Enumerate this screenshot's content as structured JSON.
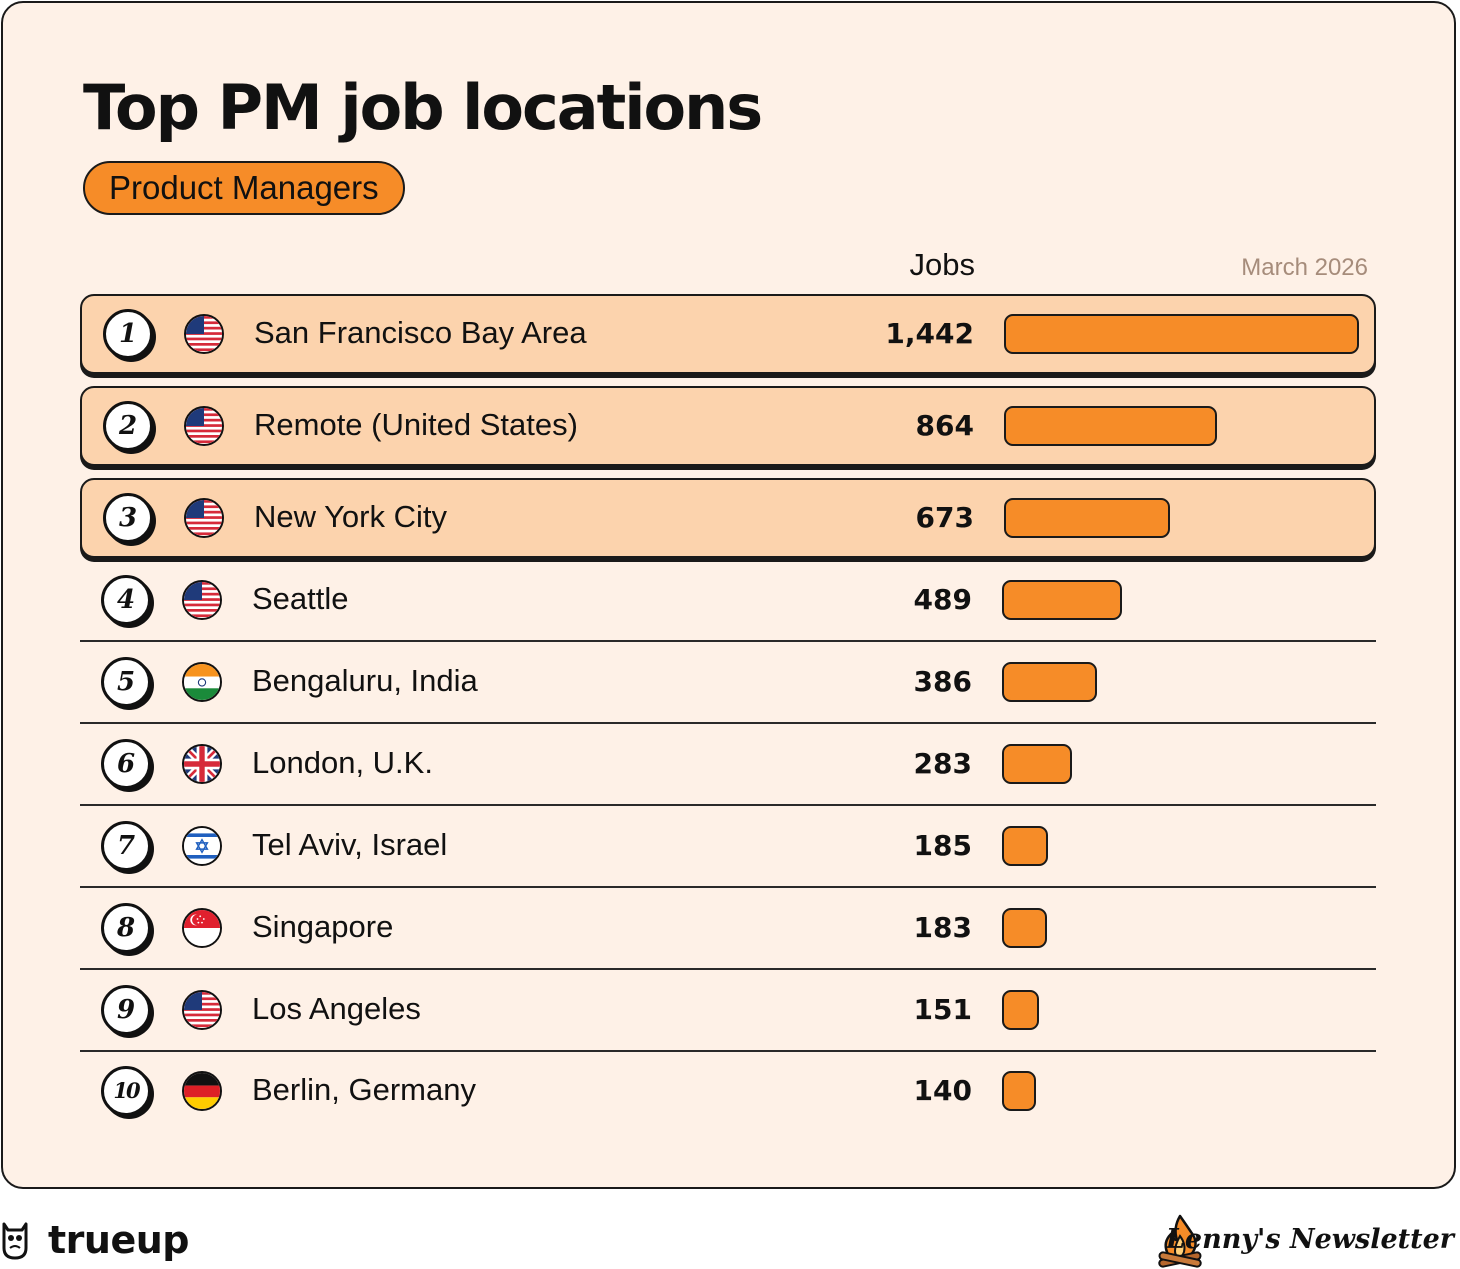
{
  "header": {
    "title": "Top PM job locations",
    "category_pill": "Product Managers",
    "jobs_column_label": "Jobs",
    "date_label": "March 2026"
  },
  "colors": {
    "accent": "#f68c28",
    "highlight_row": "#fcd3ad",
    "card_background": "#fef1e7",
    "muted_text": "#a68c7b"
  },
  "chart_data": {
    "type": "bar",
    "orientation": "horizontal",
    "title": "Top PM job locations",
    "subtitle": "Product Managers",
    "value_label": "Jobs",
    "date": "March 2026",
    "xlim": [
      0,
      1442
    ],
    "rows": [
      {
        "rank": "1",
        "location": "San Francisco Bay Area",
        "value": 1442,
        "display": "1,442",
        "flag": "us",
        "highlight": true
      },
      {
        "rank": "2",
        "location": "Remote (United States)",
        "value": 864,
        "display": "864",
        "flag": "us",
        "highlight": true
      },
      {
        "rank": "3",
        "location": "New York City",
        "value": 673,
        "display": "673",
        "flag": "us",
        "highlight": true
      },
      {
        "rank": "4",
        "location": "Seattle",
        "value": 489,
        "display": "489",
        "flag": "us",
        "highlight": false
      },
      {
        "rank": "5",
        "location": "Bengaluru, India",
        "value": 386,
        "display": "386",
        "flag": "in",
        "highlight": false
      },
      {
        "rank": "6",
        "location": "London, U.K.",
        "value": 283,
        "display": "283",
        "flag": "gb",
        "highlight": false
      },
      {
        "rank": "7",
        "location": "Tel Aviv, Israel",
        "value": 185,
        "display": "185",
        "flag": "il",
        "highlight": false
      },
      {
        "rank": "8",
        "location": "Singapore",
        "value": 183,
        "display": "183",
        "flag": "sg",
        "highlight": false
      },
      {
        "rank": "9",
        "location": "Los Angeles",
        "value": 151,
        "display": "151",
        "flag": "us",
        "highlight": false
      },
      {
        "rank": "10",
        "location": "Berlin, Germany",
        "value": 140,
        "display": "140",
        "flag": "de",
        "highlight": false
      }
    ]
  },
  "footer": {
    "left_brand": "trueup",
    "left_icon": "owl-icon",
    "right_brand": "Lenny's Newsletter",
    "right_icon": "campfire-icon"
  }
}
